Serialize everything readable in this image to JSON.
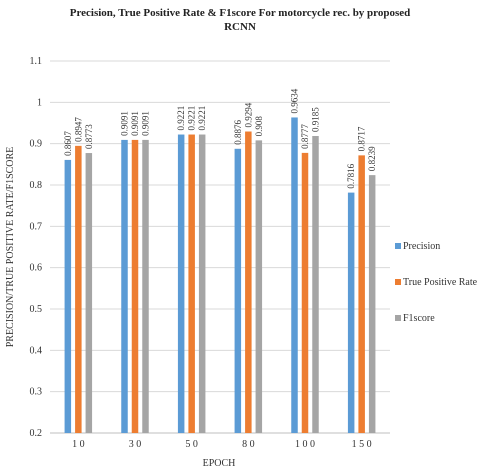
{
  "chart_data": {
    "type": "bar",
    "title_line1": "Precision, True Positive Rate & F1score For motorcycle rec. by proposed",
    "title_line2": "RCNN",
    "xlabel": "EPOCH",
    "ylabel": "PRECISION/TRUE POSITIVE RATE/F1SCORE",
    "ylim": [
      0.2,
      1.1
    ],
    "yticks": [
      "0.2",
      "0.3",
      "0.4",
      "0.5",
      "0.6",
      "0.7",
      "0.8",
      "0.9",
      "1",
      "1.1"
    ],
    "categories": [
      "1 0",
      "3 0",
      "5 0",
      "8 0",
      "1 0 0",
      "1 5 0"
    ],
    "grid": true,
    "legend_position": "right",
    "series": [
      {
        "name": "Precision",
        "color": "#5b9bd5",
        "values": [
          0.8607,
          0.9091,
          0.9221,
          0.8876,
          0.9634,
          0.7816
        ],
        "labels": [
          "0.8607",
          "0.9091",
          "0.9221",
          "0.8876",
          "0.9634",
          "0.7816"
        ]
      },
      {
        "name": "True Positive Rate",
        "color": "#ed7d31",
        "values": [
          0.8947,
          0.9091,
          0.9221,
          0.9294,
          0.8777,
          0.8717
        ],
        "labels": [
          "0.8947",
          "0.9091",
          "0.9221",
          "0.9294",
          "0.8777",
          "0.8717"
        ]
      },
      {
        "name": "F1score",
        "color": "#a5a5a5",
        "values": [
          0.8773,
          0.9091,
          0.9221,
          0.908,
          0.9185,
          0.8239
        ],
        "labels": [
          "0.8773",
          "0.9091",
          "0.9221",
          "0.908",
          "0.9185",
          "0.8239"
        ]
      }
    ]
  }
}
